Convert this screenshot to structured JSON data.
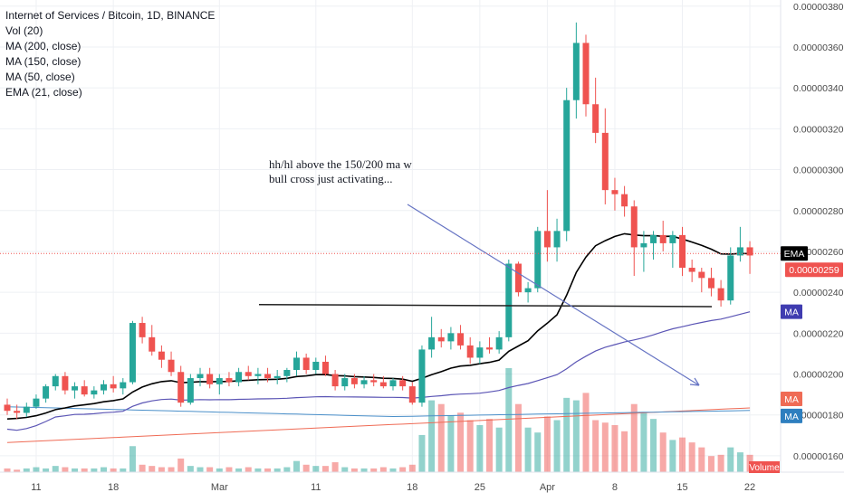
{
  "chart_data": {
    "type": "candlestick",
    "title": "Internet of Services / Bitcoin, 1D, BINANCE",
    "indicators": [
      "Vol (20)",
      "MA (200, close)",
      "MA (150, close)",
      "MA (50, close)",
      "EMA (21, close)"
    ],
    "annotation_lines": [
      "hh/hl above the 150/200 ma w",
      "bull cross just activating..."
    ],
    "y_ticks": [
      "0.00000160",
      "0.00000180",
      "0.00000200",
      "0.00000220",
      "0.00000240",
      "0.00000260",
      "0.00000280",
      "0.00000300",
      "0.00000320",
      "0.00000340",
      "0.00000360",
      "0.00000380"
    ],
    "ylim": [
      1.52e-06,
      3.83e-06
    ],
    "x_ticks": [
      "11",
      "18",
      "Mar",
      "11",
      "18",
      "25",
      "Apr",
      "8",
      "15",
      "22"
    ],
    "price_label": "0.00000259",
    "price_line": 2.59e-06,
    "badges": [
      "EMA",
      "MA",
      "MA",
      "MA",
      "Volume"
    ],
    "colors": {
      "up": "#26a69a",
      "down": "#ef5350",
      "ema": "#000000",
      "ma50": "#5b55b5",
      "ma150": "#4a8fc9",
      "ma200": "#ef6b55",
      "price": "#ef5350",
      "trend_arrow": "#6573c3",
      "support": "#222222"
    },
    "candles": [
      {
        "o": 185,
        "h": 188,
        "l": 180,
        "c": 182
      },
      {
        "o": 182,
        "h": 185,
        "l": 178,
        "c": 181
      },
      {
        "o": 181,
        "h": 186,
        "l": 179,
        "c": 184
      },
      {
        "o": 184,
        "h": 190,
        "l": 183,
        "c": 188
      },
      {
        "o": 188,
        "h": 195,
        "l": 186,
        "c": 194
      },
      {
        "o": 194,
        "h": 200,
        "l": 192,
        "c": 199
      },
      {
        "o": 199,
        "h": 201,
        "l": 190,
        "c": 192
      },
      {
        "o": 192,
        "h": 196,
        "l": 188,
        "c": 194
      },
      {
        "o": 194,
        "h": 197,
        "l": 189,
        "c": 190
      },
      {
        "o": 190,
        "h": 194,
        "l": 188,
        "c": 192
      },
      {
        "o": 192,
        "h": 197,
        "l": 190,
        "c": 195
      },
      {
        "o": 195,
        "h": 199,
        "l": 191,
        "c": 193
      },
      {
        "o": 193,
        "h": 198,
        "l": 190,
        "c": 196
      },
      {
        "o": 196,
        "h": 226,
        "l": 195,
        "c": 225
      },
      {
        "o": 225,
        "h": 228,
        "l": 215,
        "c": 218
      },
      {
        "o": 218,
        "h": 224,
        "l": 209,
        "c": 211
      },
      {
        "o": 211,
        "h": 214,
        "l": 203,
        "c": 207
      },
      {
        "o": 207,
        "h": 211,
        "l": 199,
        "c": 201
      },
      {
        "o": 201,
        "h": 204,
        "l": 184,
        "c": 186
      },
      {
        "o": 186,
        "h": 200,
        "l": 185,
        "c": 198
      },
      {
        "o": 198,
        "h": 203,
        "l": 194,
        "c": 200
      },
      {
        "o": 200,
        "h": 203,
        "l": 193,
        "c": 195
      },
      {
        "o": 195,
        "h": 200,
        "l": 190,
        "c": 198
      },
      {
        "o": 198,
        "h": 201,
        "l": 194,
        "c": 196
      },
      {
        "o": 196,
        "h": 203,
        "l": 194,
        "c": 201
      },
      {
        "o": 201,
        "h": 204,
        "l": 197,
        "c": 199
      },
      {
        "o": 199,
        "h": 203,
        "l": 195,
        "c": 200
      },
      {
        "o": 200,
        "h": 203,
        "l": 196,
        "c": 198
      },
      {
        "o": 198,
        "h": 202,
        "l": 195,
        "c": 199
      },
      {
        "o": 199,
        "h": 203,
        "l": 196,
        "c": 202
      },
      {
        "o": 202,
        "h": 211,
        "l": 199,
        "c": 208
      },
      {
        "o": 208,
        "h": 210,
        "l": 200,
        "c": 202
      },
      {
        "o": 202,
        "h": 208,
        "l": 200,
        "c": 206
      },
      {
        "o": 206,
        "h": 209,
        "l": 199,
        "c": 200
      },
      {
        "o": 200,
        "h": 202,
        "l": 192,
        "c": 194
      },
      {
        "o": 194,
        "h": 200,
        "l": 192,
        "c": 198
      },
      {
        "o": 198,
        "h": 200,
        "l": 193,
        "c": 195
      },
      {
        "o": 195,
        "h": 199,
        "l": 193,
        "c": 197
      },
      {
        "o": 197,
        "h": 200,
        "l": 194,
        "c": 196
      },
      {
        "o": 196,
        "h": 199,
        "l": 193,
        "c": 194
      },
      {
        "o": 194,
        "h": 198,
        "l": 192,
        "c": 197
      },
      {
        "o": 197,
        "h": 199,
        "l": 192,
        "c": 194
      },
      {
        "o": 194,
        "h": 196,
        "l": 185,
        "c": 186
      },
      {
        "o": 186,
        "h": 214,
        "l": 184,
        "c": 212
      },
      {
        "o": 212,
        "h": 228,
        "l": 208,
        "c": 218
      },
      {
        "o": 218,
        "h": 222,
        "l": 213,
        "c": 216
      },
      {
        "o": 216,
        "h": 223,
        "l": 212,
        "c": 220
      },
      {
        "o": 220,
        "h": 224,
        "l": 212,
        "c": 214
      },
      {
        "o": 214,
        "h": 218,
        "l": 205,
        "c": 208
      },
      {
        "o": 208,
        "h": 216,
        "l": 205,
        "c": 213
      },
      {
        "o": 213,
        "h": 218,
        "l": 210,
        "c": 212
      },
      {
        "o": 212,
        "h": 221,
        "l": 210,
        "c": 218
      },
      {
        "o": 218,
        "h": 256,
        "l": 216,
        "c": 254
      },
      {
        "o": 254,
        "h": 255,
        "l": 238,
        "c": 240
      },
      {
        "o": 240,
        "h": 245,
        "l": 235,
        "c": 242
      },
      {
        "o": 242,
        "h": 272,
        "l": 240,
        "c": 270
      },
      {
        "o": 270,
        "h": 290,
        "l": 255,
        "c": 262
      },
      {
        "o": 262,
        "h": 276,
        "l": 255,
        "c": 270
      },
      {
        "o": 270,
        "h": 340,
        "l": 265,
        "c": 334
      },
      {
        "o": 334,
        "h": 372,
        "l": 325,
        "c": 362
      },
      {
        "o": 362,
        "h": 366,
        "l": 326,
        "c": 332
      },
      {
        "o": 332,
        "h": 345,
        "l": 313,
        "c": 318
      },
      {
        "o": 318,
        "h": 330,
        "l": 283,
        "c": 290
      },
      {
        "o": 290,
        "h": 296,
        "l": 280,
        "c": 288
      },
      {
        "o": 288,
        "h": 292,
        "l": 277,
        "c": 282
      },
      {
        "o": 282,
        "h": 285,
        "l": 248,
        "c": 262
      },
      {
        "o": 262,
        "h": 270,
        "l": 250,
        "c": 264
      },
      {
        "o": 264,
        "h": 270,
        "l": 256,
        "c": 268
      },
      {
        "o": 268,
        "h": 275,
        "l": 260,
        "c": 264
      },
      {
        "o": 264,
        "h": 270,
        "l": 252,
        "c": 268
      },
      {
        "o": 268,
        "h": 272,
        "l": 248,
        "c": 252
      },
      {
        "o": 252,
        "h": 256,
        "l": 245,
        "c": 250
      },
      {
        "o": 250,
        "h": 252,
        "l": 240,
        "c": 247
      },
      {
        "o": 247,
        "h": 252,
        "l": 238,
        "c": 242
      },
      {
        "o": 242,
        "h": 246,
        "l": 233,
        "c": 236
      },
      {
        "o": 236,
        "h": 262,
        "l": 234,
        "c": 258
      },
      {
        "o": 258,
        "h": 272,
        "l": 255,
        "c": 262
      },
      {
        "o": 262,
        "h": 265,
        "l": 249,
        "c": 258
      }
    ],
    "volumes": [
      3,
      2,
      3,
      4,
      3,
      5,
      4,
      3,
      3,
      3,
      4,
      3,
      3,
      21,
      6,
      5,
      4,
      4,
      11,
      5,
      4,
      4,
      3,
      4,
      3,
      4,
      3,
      3,
      3,
      4,
      9,
      6,
      5,
      5,
      8,
      4,
      3,
      3,
      3,
      4,
      3,
      4,
      6,
      30,
      58,
      55,
      46,
      48,
      42,
      38,
      43,
      36,
      84,
      55,
      36,
      32,
      45,
      42,
      60,
      58,
      64,
      42,
      40,
      38,
      33,
      55,
      48,
      43,
      32,
      26,
      28,
      24,
      20,
      13,
      14,
      20,
      16,
      14
    ]
  }
}
